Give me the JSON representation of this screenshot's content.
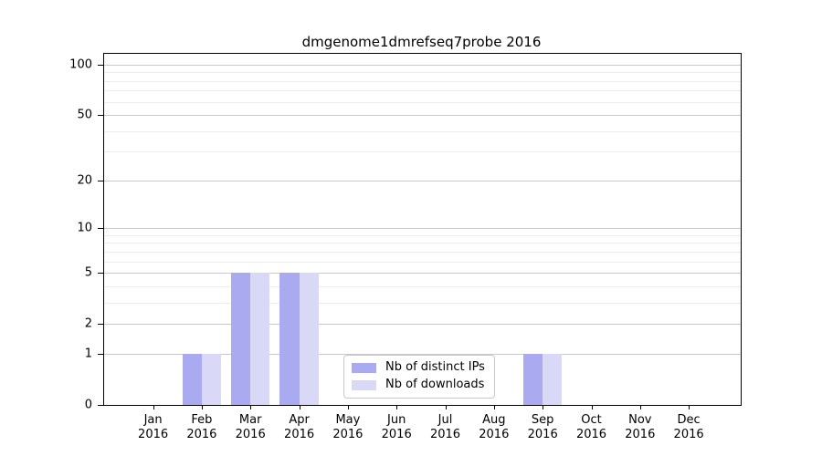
{
  "chart_data": {
    "type": "bar",
    "title": "dmgenome1dmrefseq7probe 2016",
    "x_tick_year": "2016",
    "categories": [
      "Jan",
      "Feb",
      "Mar",
      "Apr",
      "May",
      "Jun",
      "Jul",
      "Aug",
      "Sep",
      "Oct",
      "Nov",
      "Dec"
    ],
    "series": [
      {
        "name": "Nb of distinct IPs",
        "color": "#aaaaf0",
        "values": [
          0,
          1,
          5,
          5,
          0,
          0,
          0,
          0,
          1,
          0,
          0,
          0
        ]
      },
      {
        "name": "Nb of downloads",
        "color": "#d9d9f7",
        "values": [
          0,
          1,
          5,
          5,
          0,
          0,
          0,
          0,
          1,
          0,
          0,
          0
        ]
      }
    ],
    "yaxis": {
      "scale": "log1p",
      "tick_values": [
        0,
        1,
        2,
        5,
        10,
        20,
        50,
        100
      ],
      "minor_gridline_values": [
        3,
        4,
        6,
        7,
        8,
        9,
        30,
        40,
        60,
        70,
        80,
        90
      ],
      "ylim": [
        0,
        116
      ]
    },
    "xlabel": "",
    "ylabel": "",
    "grid": {
      "major_color": "#c9c9c9",
      "minor_color": "#ededed"
    },
    "legend": {
      "position": "lower center",
      "border_color": "#c8c8c8"
    },
    "axis_color": "#000000",
    "background_color": "#ffffff"
  }
}
